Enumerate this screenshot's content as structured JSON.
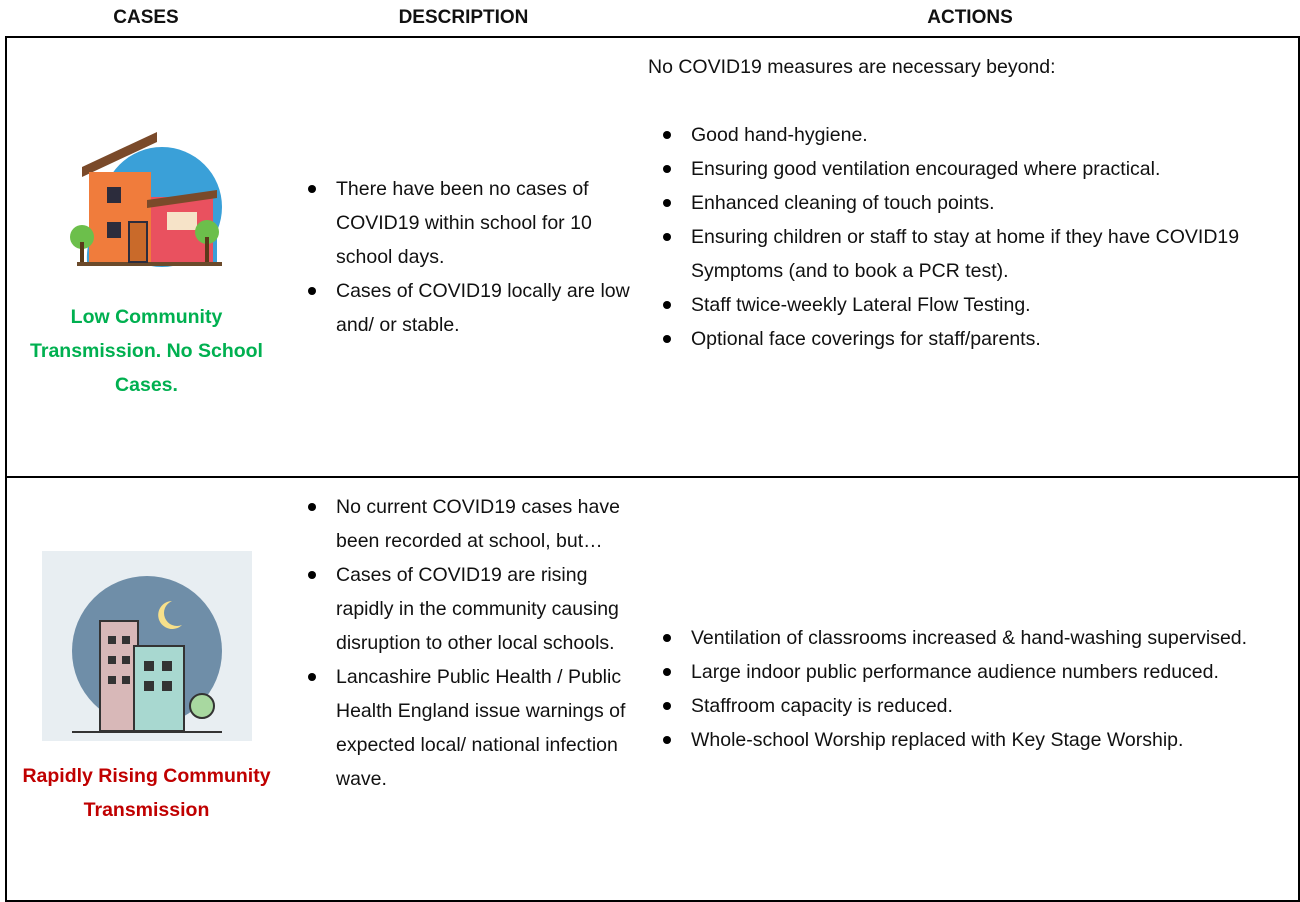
{
  "header": {
    "cases": "CASES",
    "description": "DESCRIPTION",
    "actions": "ACTIONS"
  },
  "table": {
    "rows": [
      {
        "case": "Low Community Transmission. No School Cases.",
        "description": [
          "There have been no cases of COVID19 within school for 10 school days.",
          "Cases of COVID19 locally are low and/ or stable."
        ],
        "actions_intro": "No COVID19 measures are necessary beyond:",
        "actions": [
          "Good hand-hygiene.",
          "Ensuring good ventilation encouraged where practical.",
          "Enhanced cleaning of touch points.",
          "Ensuring children or staff to stay at home if they have COVID19 Symptoms (and to book a PCR test).",
          "Staff twice-weekly Lateral Flow Testing.",
          "Optional face coverings for staff/parents."
        ]
      },
      {
        "case": "Rapidly Rising Community Transmission",
        "description": [
          "No current COVID19 cases have been recorded at school, but…",
          "Cases of COVID19 are rising rapidly in the community causing disruption to other local schools.",
          "Lancashire Public Health / Public Health England issue warnings of expected local/ national infection wave."
        ],
        "actions": [
          "Ventilation of classrooms increased & hand-washing supervised.",
          "Large indoor public performance audience numbers reduced.",
          "Staffroom capacity is reduced.",
          "Whole-school Worship replaced with Key Stage Worship."
        ]
      }
    ]
  }
}
